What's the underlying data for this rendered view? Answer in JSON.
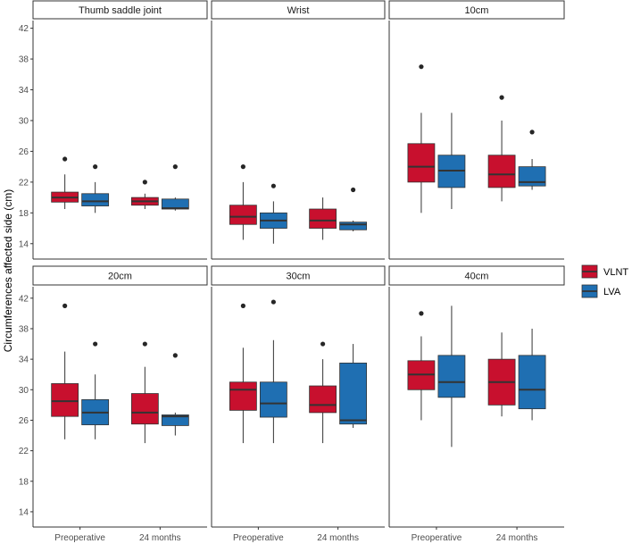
{
  "chart_data": {
    "type": "boxplot",
    "ylabel": "Circumferences affected side (cm)",
    "xlabel": "",
    "grid": false,
    "legend_position": "right",
    "categories": [
      "Preoperative",
      "24 months"
    ],
    "series_names": [
      "VLNT",
      "LVA"
    ],
    "colors": {
      "VLNT": "#C8102E",
      "LVA": "#1F6FB2",
      "median": "#333333",
      "outlier": "#262626"
    },
    "y_ticks_top": [
      14,
      18,
      22,
      26,
      30,
      34,
      38,
      42
    ],
    "y_ticks_bottom": [
      14,
      18,
      22,
      26,
      30,
      34,
      38,
      42
    ],
    "ylim_top": [
      12,
      43
    ],
    "ylim_bottom": [
      12,
      43.5
    ],
    "panels": [
      {
        "label": "Thumb saddle joint",
        "boxes": [
          {
            "category": "Preoperative",
            "series": "VLNT",
            "lower_whisker": 18.5,
            "q1": 19.4,
            "median": 20.0,
            "q3": 20.7,
            "upper_whisker": 23.0,
            "outliers": [
              25.0
            ]
          },
          {
            "category": "Preoperative",
            "series": "LVA",
            "lower_whisker": 18.0,
            "q1": 18.9,
            "median": 19.5,
            "q3": 20.5,
            "upper_whisker": 22.0,
            "outliers": [
              24.0
            ]
          },
          {
            "category": "24 months",
            "series": "VLNT",
            "lower_whisker": 18.5,
            "q1": 19.0,
            "median": 19.5,
            "q3": 20.0,
            "upper_whisker": 20.5,
            "outliers": [
              22.0
            ]
          },
          {
            "category": "24 months",
            "series": "LVA",
            "lower_whisker": 18.3,
            "q1": 18.5,
            "median": 18.6,
            "q3": 19.8,
            "upper_whisker": 20.0,
            "outliers": [
              24.0
            ]
          }
        ]
      },
      {
        "label": "Wrist",
        "boxes": [
          {
            "category": "Preoperative",
            "series": "VLNT",
            "lower_whisker": 14.5,
            "q1": 16.5,
            "median": 17.5,
            "q3": 19.0,
            "upper_whisker": 22.0,
            "outliers": [
              24.0
            ]
          },
          {
            "category": "Preoperative",
            "series": "LVA",
            "lower_whisker": 14.0,
            "q1": 16.0,
            "median": 17.0,
            "q3": 18.0,
            "upper_whisker": 19.5,
            "outliers": [
              21.5
            ]
          },
          {
            "category": "24 months",
            "series": "VLNT",
            "lower_whisker": 14.5,
            "q1": 16.0,
            "median": 17.0,
            "q3": 18.5,
            "upper_whisker": 20.0,
            "outliers": []
          },
          {
            "category": "24 months",
            "series": "LVA",
            "lower_whisker": 15.6,
            "q1": 15.8,
            "median": 16.5,
            "q3": 16.8,
            "upper_whisker": 17.0,
            "outliers": [
              21.0
            ]
          }
        ]
      },
      {
        "label": "10cm",
        "boxes": [
          {
            "category": "Preoperative",
            "series": "VLNT",
            "lower_whisker": 18.0,
            "q1": 22.0,
            "median": 24.0,
            "q3": 27.0,
            "upper_whisker": 31.0,
            "outliers": [
              37.0
            ]
          },
          {
            "category": "Preoperative",
            "series": "LVA",
            "lower_whisker": 18.5,
            "q1": 21.3,
            "median": 23.5,
            "q3": 25.5,
            "upper_whisker": 31.0,
            "outliers": []
          },
          {
            "category": "24 months",
            "series": "VLNT",
            "lower_whisker": 19.5,
            "q1": 21.3,
            "median": 23.0,
            "q3": 25.5,
            "upper_whisker": 30.0,
            "outliers": [
              33.0
            ]
          },
          {
            "category": "24 months",
            "series": "LVA",
            "lower_whisker": 21.0,
            "q1": 21.5,
            "median": 22.0,
            "q3": 24.0,
            "upper_whisker": 25.0,
            "outliers": [
              28.5
            ]
          }
        ]
      },
      {
        "label": "20cm",
        "boxes": [
          {
            "category": "Preoperative",
            "series": "VLNT",
            "lower_whisker": 23.5,
            "q1": 26.5,
            "median": 28.5,
            "q3": 30.8,
            "upper_whisker": 35.0,
            "outliers": [
              41.0
            ]
          },
          {
            "category": "Preoperative",
            "series": "LVA",
            "lower_whisker": 23.5,
            "q1": 25.4,
            "median": 27.0,
            "q3": 28.7,
            "upper_whisker": 32.0,
            "outliers": [
              36.0
            ]
          },
          {
            "category": "24 months",
            "series": "VLNT",
            "lower_whisker": 23.0,
            "q1": 25.5,
            "median": 27.0,
            "q3": 29.5,
            "upper_whisker": 33.0,
            "outliers": [
              36.0
            ]
          },
          {
            "category": "24 months",
            "series": "LVA",
            "lower_whisker": 24.0,
            "q1": 25.3,
            "median": 26.5,
            "q3": 26.7,
            "upper_whisker": 27.0,
            "outliers": [
              34.5
            ]
          }
        ]
      },
      {
        "label": "30cm",
        "boxes": [
          {
            "category": "Preoperative",
            "series": "VLNT",
            "lower_whisker": 23.0,
            "q1": 27.3,
            "median": 30.0,
            "q3": 31.0,
            "upper_whisker": 35.5,
            "outliers": [
              41.0
            ]
          },
          {
            "category": "Preoperative",
            "series": "LVA",
            "lower_whisker": 23.0,
            "q1": 26.4,
            "median": 28.2,
            "q3": 31.0,
            "upper_whisker": 36.5,
            "outliers": [
              41.5
            ]
          },
          {
            "category": "24 months",
            "series": "VLNT",
            "lower_whisker": 23.0,
            "q1": 27.0,
            "median": 28.0,
            "q3": 30.5,
            "upper_whisker": 34.0,
            "outliers": [
              36.0
            ]
          },
          {
            "category": "24 months",
            "series": "LVA",
            "lower_whisker": 25.0,
            "q1": 25.5,
            "median": 26.0,
            "q3": 33.5,
            "upper_whisker": 36.0,
            "outliers": []
          }
        ]
      },
      {
        "label": "40cm",
        "boxes": [
          {
            "category": "Preoperative",
            "series": "VLNT",
            "lower_whisker": 26.0,
            "q1": 30.0,
            "median": 32.0,
            "q3": 33.8,
            "upper_whisker": 37.0,
            "outliers": [
              40.0
            ]
          },
          {
            "category": "Preoperative",
            "series": "LVA",
            "lower_whisker": 22.5,
            "q1": 29.0,
            "median": 31.0,
            "q3": 34.5,
            "upper_whisker": 41.0,
            "outliers": []
          },
          {
            "category": "24 months",
            "series": "VLNT",
            "lower_whisker": 26.5,
            "q1": 28.0,
            "median": 31.0,
            "q3": 34.0,
            "upper_whisker": 37.5,
            "outliers": []
          },
          {
            "category": "24 months",
            "series": "LVA",
            "lower_whisker": 26.0,
            "q1": 27.5,
            "median": 30.0,
            "q3": 34.5,
            "upper_whisker": 38.0,
            "outliers": []
          }
        ]
      }
    ]
  }
}
